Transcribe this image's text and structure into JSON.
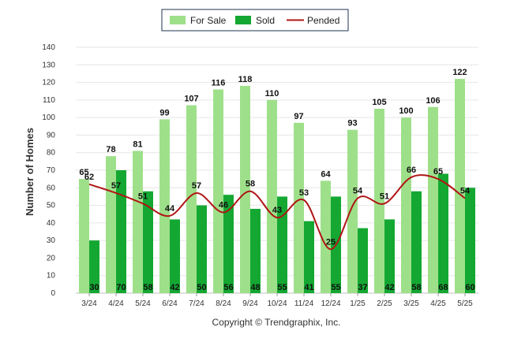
{
  "chart_data": {
    "type": "bar",
    "categories": [
      "3/24",
      "4/24",
      "5/24",
      "6/24",
      "7/24",
      "8/24",
      "9/24",
      "10/24",
      "11/24",
      "12/24",
      "1/25",
      "2/25",
      "3/25",
      "4/25",
      "5/25"
    ],
    "series": [
      {
        "name": "For Sale",
        "type": "bar",
        "color": "#9ee08a",
        "values": [
          65,
          78,
          81,
          99,
          107,
          116,
          118,
          110,
          97,
          64,
          93,
          105,
          100,
          106,
          122
        ]
      },
      {
        "name": "Sold",
        "type": "bar",
        "color": "#14a832",
        "values": [
          30,
          70,
          58,
          42,
          50,
          56,
          48,
          55,
          41,
          55,
          37,
          42,
          58,
          68,
          60
        ]
      },
      {
        "name": "Pended",
        "type": "line",
        "color": "#b01515",
        "values": [
          62,
          57,
          51,
          44,
          57,
          46,
          58,
          43,
          53,
          25,
          54,
          51,
          66,
          65,
          54
        ]
      }
    ],
    "xlabel": "",
    "ylabel": "Number of Homes",
    "ylim": [
      0,
      140
    ],
    "yticks": [
      0,
      10,
      20,
      30,
      40,
      50,
      60,
      70,
      80,
      90,
      100,
      110,
      120,
      130,
      140
    ],
    "grid": true,
    "legend": "top-center"
  },
  "footer": {
    "copyright": "Copyright © Trendgraphix, Inc."
  }
}
